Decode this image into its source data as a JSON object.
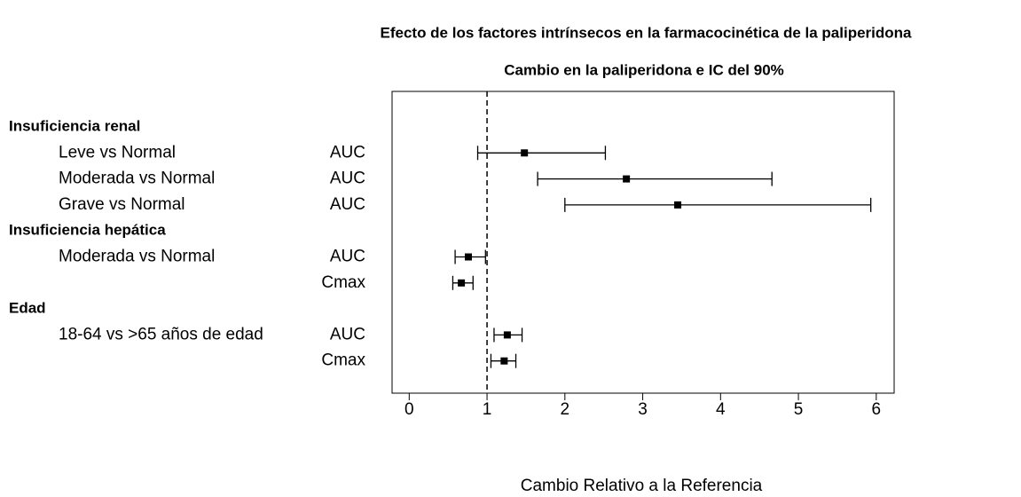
{
  "chart_data": {
    "type": "forest",
    "title": "Efecto de los factores intrínsecos en la farmacocinética de la paliperidona",
    "subtitle": "Cambio en la paliperidona e IC del 90%",
    "xlabel": "Cambio Relativo a la Referencia",
    "xlim": [
      -0.22,
      6.23
    ],
    "xticks": [
      0,
      1,
      2,
      3,
      4,
      5,
      6
    ],
    "reference_line": 1,
    "color": "#000000",
    "groups": [
      {
        "name": "Insuficiencia renal",
        "rows": [
          {
            "label": "Leve vs Normal",
            "measure": "AUC",
            "estimate": 1.48,
            "lower": 0.88,
            "upper": 2.52
          },
          {
            "label": "Moderada vs Normal",
            "measure": "AUC",
            "estimate": 2.79,
            "lower": 1.65,
            "upper": 4.66
          },
          {
            "label": "Grave vs Normal",
            "measure": "AUC",
            "estimate": 3.45,
            "lower": 2.0,
            "upper": 5.93
          }
        ]
      },
      {
        "name": "Insuficiencia hepática",
        "rows": [
          {
            "label": "Moderada vs Normal",
            "measure": "AUC",
            "estimate": 0.76,
            "lower": 0.59,
            "upper": 0.98
          },
          {
            "measure": "Cmax",
            "estimate": 0.67,
            "lower": 0.56,
            "upper": 0.82
          }
        ]
      },
      {
        "name": "Edad",
        "rows": [
          {
            "label": "18-64 vs >65 años de edad",
            "measure": "AUC",
            "estimate": 1.26,
            "lower": 1.09,
            "upper": 1.45
          },
          {
            "measure": "Cmax",
            "estimate": 1.22,
            "lower": 1.05,
            "upper": 1.37
          }
        ]
      }
    ]
  }
}
